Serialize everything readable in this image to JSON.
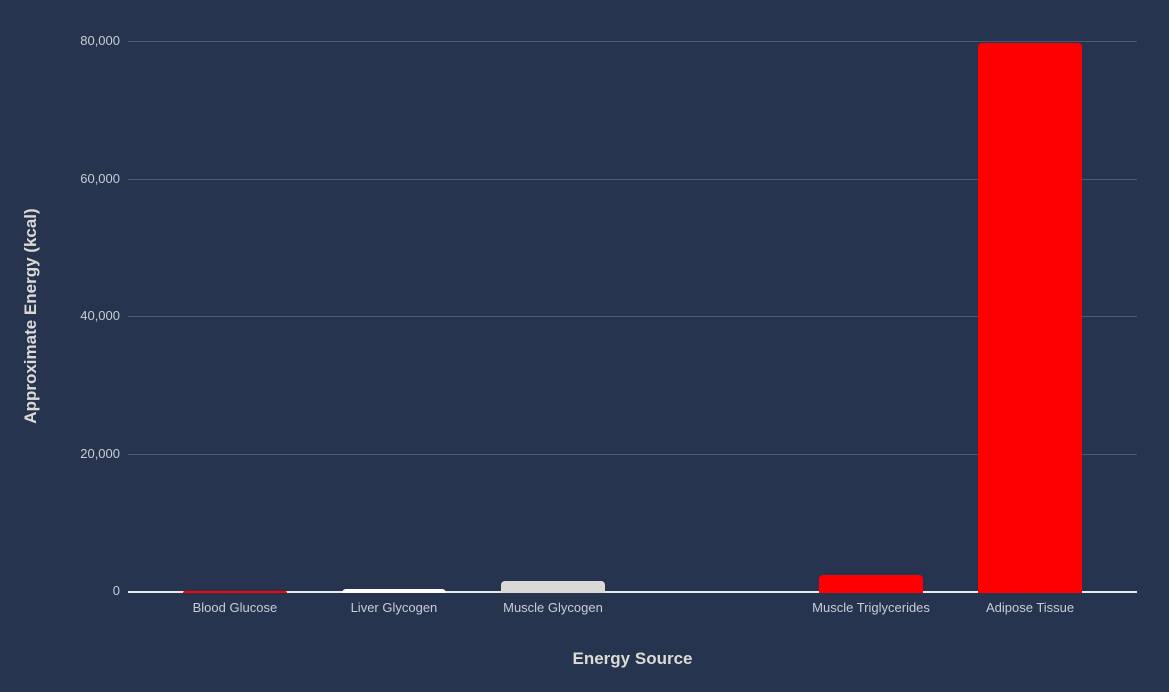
{
  "chart_data": {
    "type": "bar",
    "title": "",
    "xlabel": "Energy Source",
    "ylabel": "Approximate Energy (kcal)",
    "categories": [
      "Blood Glucose",
      "Liver Glycogen",
      "Muscle Glycogen",
      "",
      "Muscle Triglycerides",
      "Adipose Tissue"
    ],
    "values": [
      80,
      400,
      1500,
      null,
      2500,
      80000
    ],
    "bar_colors": [
      "#ff0000",
      "#ffffff",
      "#d9dad5",
      null,
      "#ff0000",
      "#ff0000"
    ],
    "ylim": [
      0,
      80000
    ],
    "y_ticks": [
      0,
      20000,
      40000,
      60000,
      80000
    ],
    "y_tick_labels": [
      "0",
      "20,000",
      "40,000",
      "60,000",
      "80,000"
    ],
    "grid": true,
    "legend": false,
    "layout_hints": {
      "empty_category_slot_index": 3,
      "gridlines_horizontal_only": true,
      "bars_flush_with_baseline": true
    },
    "colors": {
      "background": "#263450",
      "gridline": "#4d5970",
      "axis_line": "#e9e9e9",
      "tick_text": "#c8cdd6",
      "axis_title_text": "#dcdad3"
    }
  }
}
